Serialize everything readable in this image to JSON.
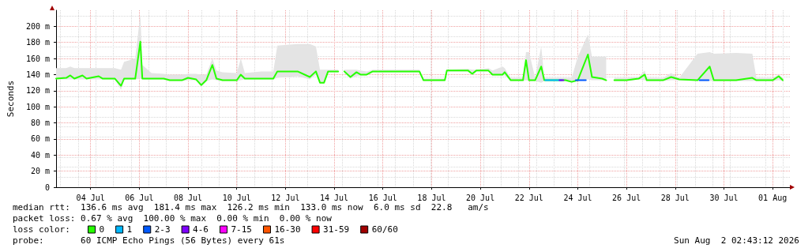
{
  "chart_data": {
    "type": "line",
    "ylabel": "Seconds",
    "legend_title": "loss color:",
    "legend": "bottom",
    "grid": true,
    "line_style": "solid",
    "xlim": [
      "--07-02T14:00",
      "--08-01T17:00"
    ],
    "ylim": [
      0,
      220
    ],
    "xticks": [
      {
        "value": "--07-04",
        "label": "04 Jul"
      },
      {
        "value": "--07-06",
        "label": "06 Jul"
      },
      {
        "value": "--07-08",
        "label": "08 Jul"
      },
      {
        "value": "--07-10",
        "label": "10 Jul"
      },
      {
        "value": "--07-12",
        "label": "12 Jul"
      },
      {
        "value": "--07-14",
        "label": "14 Jul"
      },
      {
        "value": "--07-16",
        "label": "16 Jul"
      },
      {
        "value": "--07-18",
        "label": "18 Jul"
      },
      {
        "value": "--07-20",
        "label": "20 Jul"
      },
      {
        "value": "--07-22",
        "label": "22 Jul"
      },
      {
        "value": "--07-24",
        "label": "24 Jul"
      },
      {
        "value": "--07-26",
        "label": "26 Jul"
      },
      {
        "value": "--07-28",
        "label": "28 Jul"
      },
      {
        "value": "--07-30",
        "label": "30 Jul"
      },
      {
        "value": "--08-01",
        "label": "01 Aug"
      }
    ],
    "yticks": [
      0,
      {
        "value": 20,
        "label": "20 m"
      },
      {
        "value": 40,
        "label": "40 m"
      },
      {
        "value": 60,
        "label": "60 m"
      },
      {
        "value": 80,
        "label": "80 m"
      },
      {
        "value": 100,
        "label": "100 m"
      },
      {
        "value": 120,
        "label": "120 m"
      },
      {
        "value": 140,
        "label": "140 m"
      },
      {
        "value": 160,
        "label": "160 m"
      },
      {
        "value": 180,
        "label": "180 m"
      },
      {
        "value": 200,
        "label": "200 m"
      }
    ],
    "annotations": [
      "median rtt:  136.6 ms avg  181.4 ms max  126.2 ms min  133.0 ms now  6.0 ms sd  22.8   am/s",
      "packet loss: 0.67 % avg  100.00 % max  0.00 % min  0.00 % now",
      "probe:       60 ICMP Echo Pings (56 Bytes) every 61s",
      "Sun Aug  2 02:43:12 2026"
    ],
    "x": [
      "--07-02T14:00",
      "--07-03T00:00",
      "--07-03T04:00",
      "--07-03T08:00",
      "--07-03T16:00",
      "--07-03T20:00",
      "--07-04T08:00",
      "--07-04T12:00",
      "--07-05T00:00",
      "--07-05T06:00",
      "--07-05T09:00",
      "--07-05T20:00",
      "--07-06T01:00",
      "--07-06T03:00",
      "--07-06T12:00",
      "--07-07T00:00",
      "--07-07T06:00",
      "--07-07T18:00",
      "--07-08T00:00",
      "--07-08T08:00",
      "--07-08T13:00",
      "--07-08T18:00",
      "--07-09T00:00",
      "--07-09T04:00",
      "--07-09T10:00",
      "--07-10T00:00",
      "--07-10T04:00",
      "--07-10T08:00",
      "--07-11T00:00",
      "--07-11T12:00",
      "--07-11T16:00",
      "--07-12T12:00",
      "--07-13T00:00",
      "--07-13T06:00",
      "--07-13T10:00",
      "--07-13T14:00",
      "--07-13T18:00",
      "--07-14T04:00",
      "--07-14T06:00",
      "--07-14T10:00",
      "--07-14T16:00",
      "--07-14T22:00",
      "--07-15T02:00",
      "--07-15T08:00",
      "--07-15T14:00",
      "--07-16T12:00",
      "--07-17T12:00",
      "--07-17T16:00",
      "--07-18T13:00",
      "--07-18T15:00",
      "--07-19T12:00",
      "--07-19T16:00",
      "--07-19T20:00",
      "--07-20T08:00",
      "--07-20T12:00",
      "--07-20T22:00",
      "--07-21T00:00",
      "--07-21T06:00",
      "--07-21T18:00",
      "--07-21T21:00",
      "--07-22T00:00",
      "--07-22T06:00",
      "--07-22T12:00",
      "--07-22T15:00",
      "--07-23T12:00",
      "--07-23T18:00",
      "--07-24T00:00",
      "--07-24T10:00",
      "--07-24T14:00",
      "--07-25T00:00",
      "--07-25T04:00",
      "--07-25T06:00",
      "--07-25T12:00",
      "--07-26T00:00",
      "--07-26T12:00",
      "--07-26T18:00",
      "--07-26T20:00",
      "--07-27T12:00",
      "--07-27T20:00",
      "--07-28T04:00",
      "--07-28T22:00",
      "--07-29T10:00",
      "--07-29T14:00",
      "--07-30T12:00",
      "--07-31T04:00",
      "--07-31T08:00",
      "--08-01T00:00",
      "--08-01T06:00",
      "--08-01T10:00"
    ],
    "series": [
      {
        "name": "0",
        "color": "#26ff00",
        "values": [
          135,
          136,
          139,
          135,
          139,
          135,
          138,
          135,
          135,
          126,
          135,
          135,
          181,
          135,
          135,
          135,
          133,
          133,
          136,
          134,
          127,
          133,
          152,
          135,
          133,
          133,
          140,
          135,
          135,
          135,
          144,
          144,
          137,
          144,
          130,
          130,
          144,
          144,
          null,
          144,
          137,
          143,
          140,
          140,
          144,
          144,
          144,
          133,
          133,
          145,
          145,
          141,
          145,
          145,
          140,
          140,
          143,
          133,
          133,
          158,
          133,
          133,
          150,
          133,
          133,
          131,
          133,
          165,
          137,
          135,
          133,
          null,
          133,
          133,
          135,
          140,
          133,
          133,
          137,
          134,
          133,
          150,
          133,
          133,
          136,
          133,
          133,
          138,
          133
        ],
        "lower": [
          134,
          134,
          134,
          134,
          134,
          134,
          134,
          134,
          134,
          121,
          134,
          134,
          135,
          134,
          134,
          134,
          132,
          132,
          133,
          133,
          125,
          132,
          134,
          133,
          132,
          132,
          133,
          134,
          134,
          134,
          136,
          138,
          134,
          140,
          129,
          129,
          143,
          143,
          null,
          142,
          135,
          138,
          139,
          139,
          143,
          143,
          143,
          132,
          132,
          144,
          144,
          140,
          144,
          144,
          139,
          139,
          139,
          132,
          132,
          133,
          132,
          132,
          130,
          132,
          132,
          130,
          132,
          134,
          133,
          133,
          132,
          null,
          132,
          132,
          134,
          133,
          132,
          132,
          133,
          133,
          132,
          132,
          132,
          132,
          132,
          132,
          132,
          133,
          132
        ],
        "upper": [
          148,
          148,
          150,
          148,
          148,
          148,
          148,
          148,
          148,
          146,
          156,
          160,
          215,
          152,
          142,
          141,
          140,
          140,
          141,
          141,
          140,
          140,
          160,
          145,
          143,
          142,
          160,
          142,
          144,
          144,
          176,
          178,
          178,
          175,
          146,
          146,
          146,
          146,
          null,
          146,
          146,
          146,
          145,
          144,
          146,
          146,
          146,
          135,
          135,
          146,
          147,
          146,
          146,
          148,
          145,
          150,
          148,
          136,
          136,
          168,
          168,
          136,
          175,
          136,
          136,
          136,
          162,
          190,
          162,
          162,
          162,
          null,
          136,
          136,
          137,
          145,
          136,
          136,
          142,
          136,
          166,
          168,
          166,
          167,
          166,
          136,
          136,
          140,
          136
        ]
      },
      {
        "name": "1",
        "color": "#00b8ff",
        "x": [
          "--07-22T16:00",
          "--07-23T00:00",
          "--07-23T08:00"
        ],
        "values": [
          133,
          133,
          133
        ]
      },
      {
        "name": "2-3",
        "color": "#0059ff",
        "x": [
          "--07-23T22:00",
          "--07-24T08:00",
          "--07-26T12:00",
          "--07-29T00:00",
          "--07-29T09:00"
        ],
        "values": [
          133,
          133,
          null,
          133,
          133
        ]
      },
      {
        "name": "4-6",
        "color": "#7e00ff",
        "x": [
          "--07-23T06:00",
          "--07-23T10:00"
        ],
        "values": [
          133,
          133
        ]
      },
      {
        "name": "7-15",
        "color": "#ff00ff",
        "values": [
          null,
          null,
          null,
          null,
          null,
          null,
          null,
          null,
          null,
          null,
          null,
          null,
          null,
          null,
          null,
          null,
          null,
          null,
          null,
          null,
          null,
          null,
          null,
          null,
          null,
          null,
          null,
          null,
          null,
          null,
          null,
          null,
          null,
          null,
          null,
          null,
          null,
          null,
          null,
          null,
          null,
          null,
          null,
          null,
          null,
          null,
          null,
          null,
          null,
          null,
          null,
          null,
          null,
          null,
          null,
          null,
          null,
          null,
          null,
          null,
          null,
          null,
          null,
          null,
          null,
          null,
          null,
          null,
          null,
          null,
          null,
          null,
          null,
          null,
          null,
          null,
          null,
          null,
          null,
          null,
          null,
          null,
          null,
          null,
          null,
          null,
          null,
          null,
          null
        ]
      },
      {
        "name": "16-30",
        "color": "#ff5500",
        "values": [
          null,
          null,
          null,
          null,
          null,
          null,
          null,
          null,
          null,
          null,
          null,
          null,
          null,
          null,
          null,
          null,
          null,
          null,
          null,
          null,
          null,
          null,
          null,
          null,
          null,
          null,
          null,
          null,
          null,
          null,
          null,
          null,
          null,
          null,
          null,
          null,
          null,
          null,
          null,
          null,
          null,
          null,
          null,
          null,
          null,
          null,
          null,
          null,
          null,
          null,
          null,
          null,
          null,
          null,
          null,
          null,
          null,
          null,
          null,
          null,
          null,
          null,
          null,
          null,
          null,
          null,
          null,
          null,
          null,
          null,
          null,
          null,
          null,
          null,
          null,
          null,
          null,
          null,
          null,
          null,
          null,
          null,
          null,
          null,
          null,
          null,
          null,
          null,
          null
        ]
      },
      {
        "name": "31-59",
        "color": "#ff0000",
        "values": [
          null,
          null,
          null,
          null,
          null,
          null,
          null,
          null,
          null,
          null,
          null,
          null,
          null,
          null,
          null,
          null,
          null,
          null,
          null,
          null,
          null,
          null,
          null,
          null,
          null,
          null,
          null,
          null,
          null,
          null,
          null,
          null,
          null,
          null,
          null,
          null,
          null,
          null,
          null,
          null,
          null,
          null,
          null,
          null,
          null,
          null,
          null,
          null,
          null,
          null,
          null,
          null,
          null,
          null,
          null,
          null,
          null,
          null,
          null,
          null,
          null,
          null,
          null,
          null,
          null,
          null,
          null,
          null,
          null,
          null,
          null,
          null,
          null,
          null,
          null,
          null,
          null,
          null,
          null,
          null,
          null,
          null,
          null,
          null,
          null,
          null,
          null,
          null,
          null
        ]
      },
      {
        "name": "60/60",
        "color": "#a10000",
        "values": [
          null,
          null,
          null,
          null,
          null,
          null,
          null,
          null,
          null,
          null,
          null,
          null,
          null,
          null,
          null,
          null,
          null,
          null,
          null,
          null,
          null,
          null,
          null,
          null,
          null,
          null,
          null,
          null,
          null,
          null,
          null,
          null,
          null,
          null,
          null,
          null,
          null,
          null,
          null,
          null,
          null,
          null,
          null,
          null,
          null,
          null,
          null,
          null,
          null,
          null,
          null,
          null,
          null,
          null,
          null,
          null,
          null,
          null,
          null,
          null,
          null,
          null,
          null,
          null,
          null,
          null,
          null,
          null,
          null,
          null,
          null,
          null,
          null,
          null,
          null,
          null,
          null,
          null,
          null,
          null,
          null,
          null,
          null,
          null,
          null,
          null,
          null,
          null,
          null
        ]
      }
    ]
  }
}
